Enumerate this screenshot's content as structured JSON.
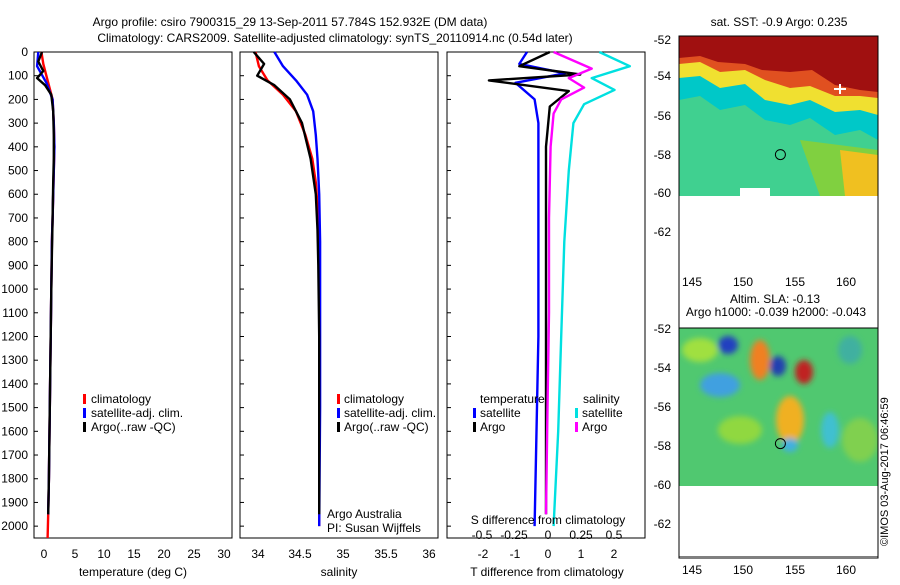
{
  "title": {
    "line1": "Argo profile: csiro 7900315_29 13-Sep-2011 57.784S 152.932E (DM data)",
    "line2": "Climatology: CARS2009. Satellite-adjusted climatology: synTS_20110914.nc (0.54d later)"
  },
  "depth_ticks": [
    "0",
    "100",
    "200",
    "300",
    "400",
    "500",
    "600",
    "700",
    "800",
    "900",
    "1000",
    "1100",
    "1200",
    "1300",
    "1400",
    "1500",
    "1600",
    "1700",
    "1800",
    "1900",
    "2000"
  ],
  "colors": {
    "climatology": "#ff0000",
    "satellite": "#0000ff",
    "argo": "#000000",
    "sat_salinity": "#00e0e0",
    "argo_salinity": "#ff00ff"
  },
  "temperature_panel": {
    "xlabel": "temperature (deg C)",
    "xticks": [
      "0",
      "5",
      "10",
      "15",
      "20",
      "25",
      "30"
    ],
    "legend": [
      "climatology",
      "satellite-adj. clim.",
      "Argo(..raw -QC)"
    ]
  },
  "salinity_panel": {
    "xlabel": "salinity",
    "xticks": [
      "34",
      "34.5",
      "35",
      "35.5",
      "36"
    ],
    "legend": [
      "climatology",
      "satellite-adj. clim.",
      "Argo(..raw -QC)"
    ],
    "note1": "Argo Australia",
    "note2": "PI: Susan Wijffels"
  },
  "diff_panel": {
    "xlabel": "T difference from climatology",
    "top_label": "S difference from climatology",
    "t_ticks": [
      "-2",
      "-1",
      "0",
      "1",
      "2"
    ],
    "s_ticks": [
      "-0.5",
      "-0.25",
      "0",
      "0.25",
      "0.5"
    ],
    "legend_temp_head": "temperature",
    "legend_sal_head": "salinity",
    "legend_sat": "satellite",
    "legend_argo": "Argo"
  },
  "sst_map": {
    "title": "sat. SST: -0.9 Argo: 0.235",
    "yticks": [
      "-52",
      "-54",
      "-56",
      "-58",
      "-60",
      "-62"
    ],
    "xticks": [
      "145",
      "150",
      "155",
      "160"
    ]
  },
  "sla_map": {
    "title1": "Altim. SLA: -0.13",
    "title2": "Argo h1000: -0.039 h2000: -0.043",
    "yticks": [
      "-52",
      "-54",
      "-56",
      "-58",
      "-60",
      "-62"
    ],
    "xticks": [
      "145",
      "150",
      "155",
      "160"
    ]
  },
  "credit": "©IMOS 03-Aug-2017 06:46:59",
  "chart_data": [
    {
      "type": "line",
      "xlabel": "temperature (deg C)",
      "ylabel": "",
      "xlim": [
        -1,
        31
      ],
      "ylim": [
        2050,
        0
      ],
      "series": [
        {
          "name": "climatology",
          "x": [
            0.2,
            0.5,
            1.2,
            2.0,
            2.2,
            2.3,
            2.2,
            2.1,
            2.0,
            1.9,
            1.8,
            1.7,
            1.6,
            1.5,
            1.4,
            1.3,
            1.2
          ],
          "depth": [
            0,
            50,
            120,
            200,
            300,
            400,
            500,
            600,
            700,
            800,
            1000,
            1200,
            1400,
            1600,
            1800,
            1950,
            2050
          ]
        },
        {
          "name": "satellite-adj. clim.",
          "x": [
            -0.3,
            -0.5,
            1.0,
            2.0,
            2.2,
            2.3,
            2.2,
            2.1,
            2.0,
            1.9,
            1.8,
            1.7,
            1.6,
            1.5,
            1.4,
            1.3
          ],
          "depth": [
            0,
            60,
            130,
            200,
            300,
            400,
            500,
            600,
            700,
            800,
            1000,
            1200,
            1400,
            1600,
            1800,
            1950
          ]
        },
        {
          "name": "Argo(..raw -QC)",
          "x": [
            0.3,
            -0.3,
            0.5,
            -0.5,
            0.8,
            1.8,
            2.1,
            2.2,
            2.2,
            2.1,
            2.0,
            1.9,
            1.8,
            1.7,
            1.6,
            1.5,
            1.4,
            1.3
          ],
          "depth": [
            0,
            40,
            80,
            110,
            140,
            180,
            250,
            350,
            450,
            550,
            700,
            850,
            1000,
            1200,
            1400,
            1600,
            1800,
            1950
          ]
        }
      ]
    },
    {
      "type": "line",
      "xlabel": "salinity",
      "ylabel": "",
      "xlim": [
        33.8,
        36.1
      ],
      "ylim": [
        2050,
        0
      ],
      "series": [
        {
          "name": "climatology",
          "x": [
            33.98,
            34.02,
            34.12,
            34.3,
            34.45,
            34.56,
            34.64,
            34.68,
            34.7,
            34.71,
            34.72,
            34.72,
            34.72
          ],
          "depth": [
            0,
            60,
            120,
            180,
            250,
            350,
            450,
            550,
            650,
            800,
            1000,
            1500,
            2000
          ]
        },
        {
          "name": "satellite-adj. clim.",
          "x": [
            34.2,
            34.3,
            34.45,
            34.58,
            34.65,
            34.68,
            34.7,
            34.72,
            34.73,
            34.73,
            34.73,
            34.72
          ],
          "depth": [
            0,
            60,
            120,
            180,
            250,
            350,
            450,
            600,
            800,
            1000,
            1500,
            2000
          ]
        },
        {
          "name": "Argo(..raw -QC)",
          "x": [
            33.96,
            34.08,
            34.0,
            34.2,
            34.38,
            34.52,
            34.62,
            34.68,
            34.7,
            34.71,
            34.72,
            34.72
          ],
          "depth": [
            0,
            50,
            100,
            140,
            200,
            300,
            450,
            600,
            750,
            900,
            1200,
            1950
          ]
        }
      ]
    },
    {
      "type": "line",
      "xlabel": "T difference from climatology",
      "ylabel": "",
      "xlim": [
        -2.6,
        2.6
      ],
      "ylim": [
        2050,
        0
      ],
      "series": [
        {
          "name": "temperature satellite",
          "x": [
            -0.5,
            -0.7,
            0.5,
            -0.8,
            -0.3,
            -0.2,
            -0.2,
            -0.2,
            -0.2,
            -0.25,
            -0.3
          ],
          "depth": [
            0,
            50,
            90,
            130,
            200,
            300,
            500,
            800,
            1200,
            1600,
            2000
          ]
        },
        {
          "name": "temperature Argo",
          "x": [
            0.1,
            -0.7,
            0.9,
            -1.5,
            0.6,
            0.1,
            0.0,
            0.0,
            0.0,
            0.0,
            0.0
          ],
          "depth": [
            0,
            60,
            95,
            120,
            165,
            230,
            400,
            700,
            1100,
            1500,
            1950
          ]
        },
        {
          "name": "salinity satellite",
          "x": [
            0.35,
            0.55,
            0.3,
            0.45,
            0.25,
            0.18,
            0.15,
            0.12,
            0.1,
            0.08,
            0.05
          ],
          "depth": [
            0,
            60,
            110,
            160,
            220,
            300,
            500,
            800,
            1200,
            1600,
            2000
          ]
        },
        {
          "name": "salinity Argo",
          "x": [
            0.05,
            0.3,
            0.15,
            0.25,
            0.1,
            0.05,
            0.03,
            0.02,
            0.02,
            0.01,
            0.0
          ],
          "depth": [
            0,
            70,
            110,
            150,
            200,
            260,
            400,
            700,
            1100,
            1500,
            1950
          ]
        }
      ]
    },
    {
      "type": "heatmap",
      "title": "sat. SST: -0.9 Argo: 0.235",
      "xlim": [
        143,
        162.5
      ],
      "ylim": [
        -64,
        -51.5
      ],
      "argo_position": [
        152.932,
        -57.784
      ]
    },
    {
      "type": "heatmap",
      "title": "Altim. SLA: -0.13",
      "xlim": [
        143,
        162.5
      ],
      "ylim": [
        -64,
        -51.5
      ],
      "argo_position": [
        152.932,
        -57.784
      ]
    }
  ]
}
